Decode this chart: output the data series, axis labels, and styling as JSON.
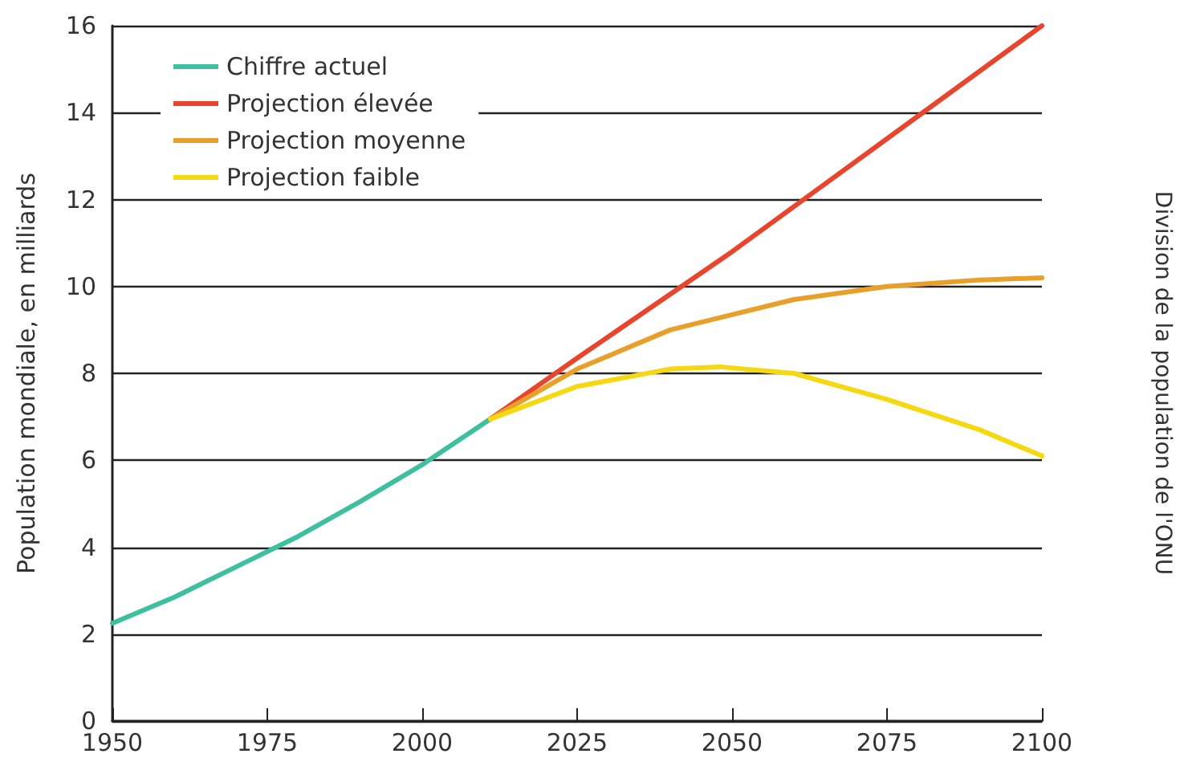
{
  "chart_data": {
    "type": "line",
    "ylabel": "Population mondiale, en milliards",
    "annotations": [
      "Division de la population de l'ONU"
    ],
    "xlim": [
      1950,
      2100
    ],
    "xticks": [
      1950,
      1975,
      2000,
      2025,
      2050,
      2075,
      2100
    ],
    "ylim": [
      0,
      16
    ],
    "yticks": [
      0,
      2,
      4,
      6,
      8,
      10,
      12,
      14,
      16
    ],
    "grid": "y",
    "legend": "top left",
    "marker": "none",
    "line_style": "solid",
    "series": [
      {
        "name": "Chiffre actuel",
        "color": "#3dbfa0",
        "x": [
          1950,
          1960,
          1970,
          1980,
          1990,
          2000,
          2011
        ],
        "values": [
          2.25,
          2.85,
          3.55,
          4.25,
          5.05,
          5.9,
          6.95
        ]
      },
      {
        "name": "Projection élevée",
        "color": "#e8452c",
        "x": [
          2011,
          2025,
          2050,
          2075,
          2100
        ],
        "values": [
          6.95,
          8.35,
          10.8,
          13.4,
          16
        ]
      },
      {
        "name": "Projection moyenne",
        "color": "#e8a02a",
        "x": [
          2011,
          2025,
          2040,
          2050,
          2060,
          2075,
          2090,
          2100
        ],
        "values": [
          6.95,
          8.1,
          9.0,
          9.35,
          9.7,
          10.0,
          10.15,
          10.2
        ]
      },
      {
        "name": "Projection faible",
        "color": "#f5d80f",
        "x": [
          2011,
          2025,
          2040,
          2048,
          2060,
          2075,
          2090,
          2100
        ],
        "values": [
          6.95,
          7.7,
          8.1,
          8.15,
          8.0,
          7.4,
          6.7,
          6.1
        ]
      }
    ]
  }
}
